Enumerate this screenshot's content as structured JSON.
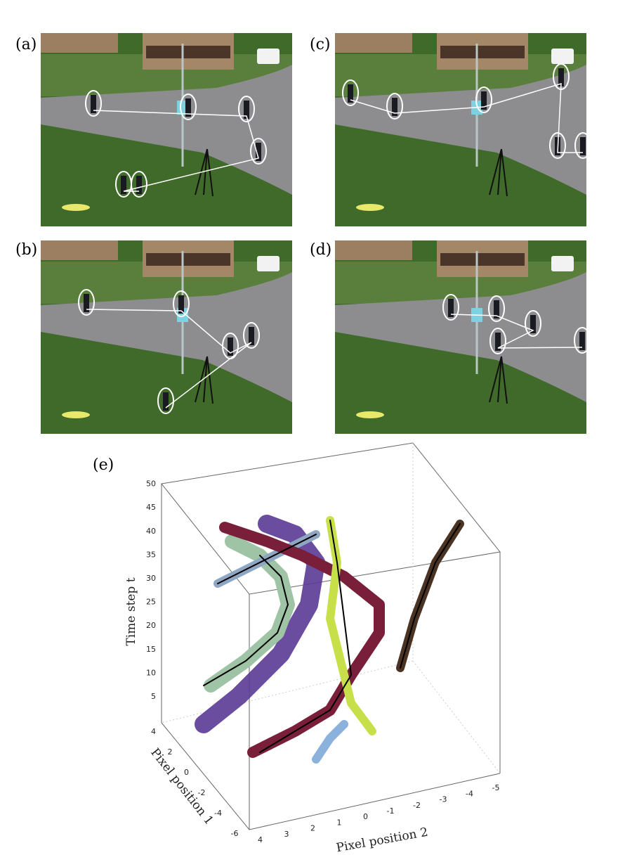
{
  "panels": [
    {
      "label": "(a)"
    },
    {
      "label": "(b)"
    },
    {
      "label": "(c)"
    },
    {
      "label": "(d)"
    }
  ],
  "plot": {
    "label": "(e)",
    "time_axis": {
      "label": "Time step t",
      "ticks": [
        5,
        10,
        15,
        20,
        25,
        30,
        35,
        40,
        45,
        50
      ]
    },
    "pixel1_axis": {
      "label": "Pixel position 1",
      "ticks": [
        4,
        2,
        0,
        -2,
        -4,
        -6
      ]
    },
    "pixel2_axis": {
      "label": "Pixel position 2",
      "ticks": [
        4,
        3,
        2,
        1,
        0,
        -1,
        -2,
        -3,
        -4,
        -5
      ]
    }
  }
}
